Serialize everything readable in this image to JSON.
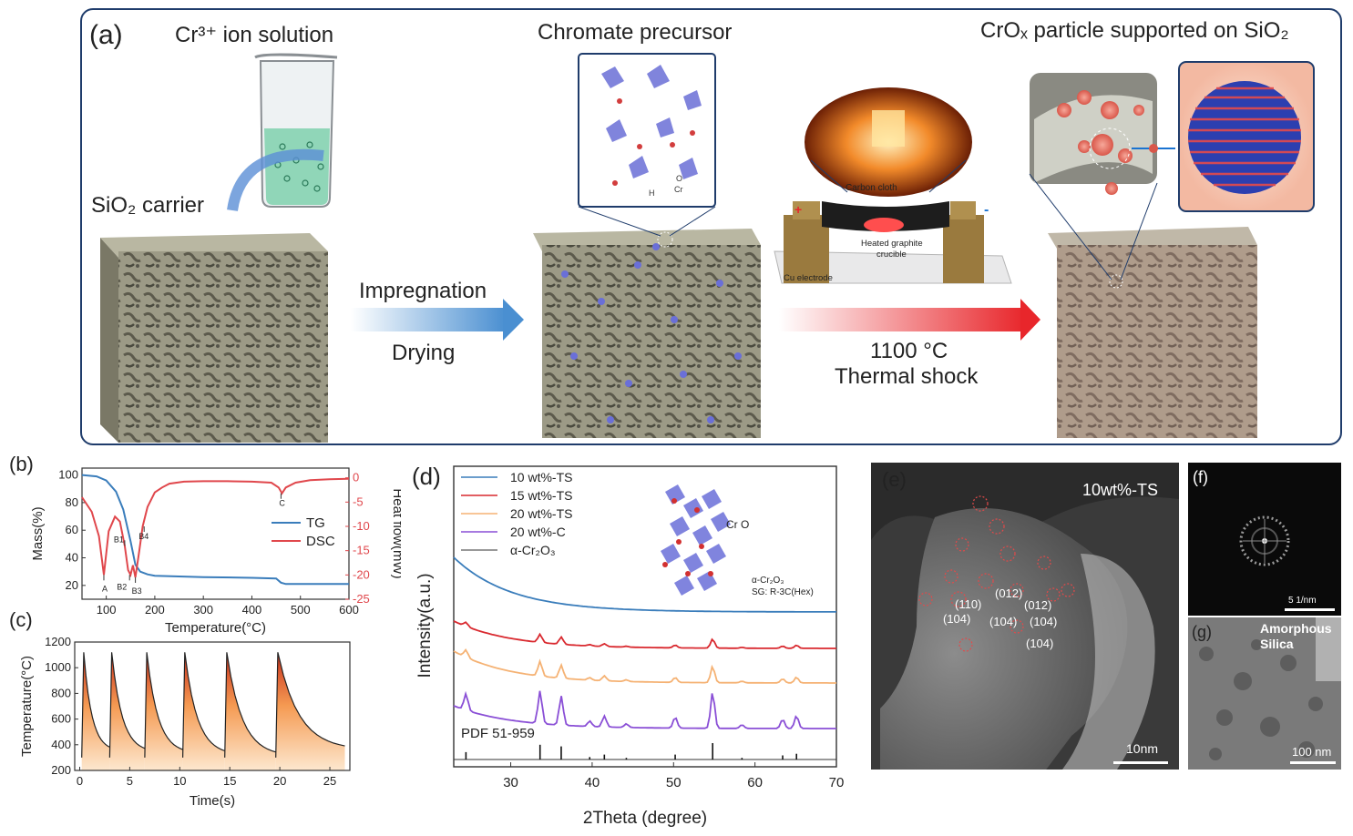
{
  "panel_a": {
    "label": "(a)",
    "cr_solution": "Cr³⁺ ion solution",
    "sio2_carrier": "SiO₂ carrier",
    "chromate_precursor": "Chromate precursor",
    "crox_title": "CrOₓ particle supported on SiO₂",
    "step1_top": "Impregnation",
    "step1_bottom": "Drying",
    "step2_top": "1100 °C",
    "step2_bottom": "Thermal shock",
    "device": {
      "carbon_cloth": "Carbon cloth",
      "heated_crucible": "Heated graphite crucible",
      "cu_electrode": "Cu electrode",
      "plus": "+",
      "minus": "-"
    },
    "structure_labels": {
      "h": "H",
      "o": "O",
      "cr": "Cr"
    },
    "colors": {
      "frame": "#1f3c6b",
      "arrow_blue": "#4a8fd1",
      "arrow_red": "#e8262b"
    }
  },
  "panel_b": {
    "label": "(b)",
    "legend": [
      "TG",
      "DSC"
    ],
    "annotations": [
      "A",
      "B1",
      "B2",
      "B3",
      "B4",
      "C"
    ],
    "chart_data": {
      "type": "line",
      "xlabel": "Temperature(°C)",
      "ylabel_left": "Mass(%)",
      "ylabel_right": "Heat flow(mW)",
      "xlim": [
        50,
        600
      ],
      "ylim_left": [
        10,
        105
      ],
      "ylim_right": [
        -25,
        2
      ],
      "xticks": [
        "100",
        "200",
        "300",
        "400",
        "500",
        "600"
      ],
      "yticks_left": [
        "20",
        "40",
        "60",
        "80",
        "100"
      ],
      "yticks_right": [
        "0",
        "-5",
        "-10",
        "-15",
        "-20",
        "-25"
      ],
      "series": [
        {
          "name": "TG",
          "color": "#3a7dbb",
          "x": [
            50,
            80,
            100,
            120,
            135,
            150,
            160,
            170,
            185,
            200,
            250,
            300,
            400,
            450,
            460,
            470,
            500,
            550,
            600
          ],
          "y": [
            100,
            99,
            96,
            88,
            75,
            52,
            35,
            30,
            28,
            27,
            26.5,
            26,
            25.5,
            25,
            22,
            21,
            21,
            21,
            21
          ]
        },
        {
          "name": "DSC",
          "color": "#e0474c",
          "x": [
            50,
            70,
            85,
            95,
            105,
            118,
            128,
            138,
            145,
            150,
            155,
            160,
            168,
            175,
            185,
            200,
            215,
            230,
            260,
            300,
            350,
            400,
            440,
            455,
            462,
            470,
            490,
            520,
            560,
            600
          ],
          "y": [
            -4,
            -7,
            -12,
            -20,
            -11,
            -8,
            -9,
            -14,
            -19,
            -20,
            -18,
            -20.5,
            -15,
            -10,
            -6,
            -3,
            -2,
            -1.2,
            -0.8,
            -0.7,
            -0.7,
            -0.8,
            -1,
            -2,
            -3.2,
            -2,
            -1,
            -0.5,
            -0.3,
            -0.2
          ]
        }
      ]
    }
  },
  "panel_c": {
    "label": "(c)",
    "chart_data": {
      "type": "line",
      "xlabel": "Time(s)",
      "ylabel": "Temperature(°C)",
      "xlim": [
        -0.5,
        27
      ],
      "ylim": [
        200,
        1200
      ],
      "xticks": [
        "0",
        "5",
        "10",
        "15",
        "20",
        "25"
      ],
      "yticks": [
        "200",
        "400",
        "600",
        "800",
        "1000",
        "1200"
      ],
      "pulse_starts": [
        0.2,
        3.0,
        6.5,
        10.3,
        14.5,
        19.6
      ],
      "pulse_ends": [
        3.0,
        6.5,
        10.3,
        14.5,
        19.6,
        26.5
      ],
      "peak": 1120,
      "baseline_end": [
        350,
        340,
        330,
        320,
        310,
        360
      ]
    }
  },
  "panel_d": {
    "label": "(d)",
    "pdf_label": "PDF 51-959",
    "crystal_label": "α-Cr₂O₃",
    "crystal_sg": "SG: R-3C(Hex)",
    "crystal_atoms": "Cr O",
    "chart_data": {
      "type": "line",
      "xlabel": "2Theta (degree)",
      "ylabel": "Intensity(a.u.)",
      "xlim": [
        23,
        70
      ],
      "xticks": [
        "30",
        "40",
        "50",
        "60",
        "70"
      ],
      "series": [
        {
          "name": "10 wt%-TS",
          "color": "#3a7dbb"
        },
        {
          "name": "15 wt%-TS",
          "color": "#d9292f"
        },
        {
          "name": "20 wt%-TS",
          "color": "#f5b274"
        },
        {
          "name": "20 wt%-C",
          "color": "#8a4fd6"
        },
        {
          "name": "α-Cr₂O₃",
          "color": "#333333"
        }
      ],
      "reference_peaks": [
        24.5,
        33.6,
        36.2,
        39.7,
        41.5,
        44.2,
        50.2,
        54.8,
        58.4,
        63.4,
        65.1
      ],
      "reference_heights": [
        0.45,
        0.9,
        0.8,
        0.15,
        0.3,
        0.1,
        0.3,
        1.0,
        0.1,
        0.25,
        0.35
      ]
    }
  },
  "panel_e": {
    "label": "(e)",
    "sample": "10wt%-TS",
    "scale": "10nm",
    "planes": [
      "(110)",
      "(012)",
      "(012)",
      "(104)",
      "(104)",
      "(104)",
      "(104)"
    ]
  },
  "panel_f": {
    "label": "(f)",
    "scale": "5 1/nm"
  },
  "panel_g": {
    "label": "(g)",
    "text": "Amorphous Silica",
    "scale": "100 nm"
  }
}
